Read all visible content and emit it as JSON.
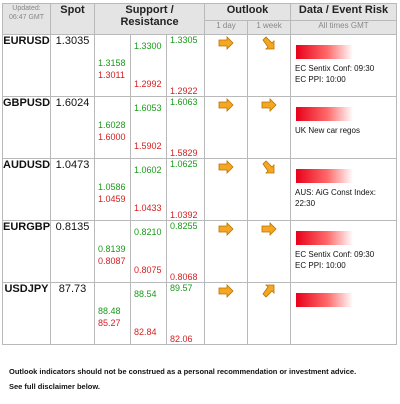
{
  "header": {
    "updated_label": "Updated:",
    "updated_time": "06:47 GMT",
    "spot": "Spot",
    "support_resistance": "Support / Resistance",
    "outlook": "Outlook",
    "day1": "1 day",
    "week1": "1 week",
    "data_event_risk": "Data / Event Risk",
    "times_note": "All times GMT"
  },
  "rows": [
    {
      "pair": "EURUSD",
      "spot": "1.3035",
      "r1": "1.3158",
      "s1": "1.3011",
      "r2": "1.3300",
      "s2": "1.2992",
      "r3": "1.3305",
      "s3": "1.2922",
      "day": "right",
      "week": "down-right",
      "events": [
        "EC Sentix Conf: 09:30",
        "EC PPI: 10:00"
      ]
    },
    {
      "pair": "GBPUSD",
      "spot": "1.6024",
      "r1": "1.6028",
      "s1": "1.6000",
      "r2": "1.6053",
      "s2": "1.5902",
      "r3": "1.6063",
      "s3": "1.5829",
      "day": "right",
      "week": "right",
      "events": [
        "UK New car regos"
      ]
    },
    {
      "pair": "AUDUSD",
      "spot": "1.0473",
      "r1": "1.0586",
      "s1": "1.0459",
      "r2": "1.0602",
      "s2": "1.0433",
      "r3": "1.0625",
      "s3": "1.0392",
      "day": "right",
      "week": "down-right",
      "events": [
        "AUS: AiG Const Index:",
        "22:30"
      ]
    },
    {
      "pair": "EURGBP",
      "spot": "0.8135",
      "r1": "0.8139",
      "s1": "0.8087",
      "r2": "0.8210",
      "s2": "0.8075",
      "r3": "0.8255",
      "s3": "0.8068",
      "day": "right",
      "week": "right",
      "events": [
        "EC Sentix Conf: 09:30",
        "EC PPI: 10:00"
      ]
    },
    {
      "pair": "USDJPY",
      "spot": "87.73",
      "r1": "88.48",
      "s1": "85.27",
      "r2": "88.54",
      "s2": "82.84",
      "r3": "89.57",
      "s3": "82.06",
      "day": "right",
      "week": "up-right",
      "events": []
    }
  ],
  "footer": {
    "line1": "Outlook indicators should not be construed as a personal recommendation or investment advice.",
    "line2": "See full disclaimer below."
  },
  "colors": {
    "resistance": "#1a9a1a",
    "support": "#d42020",
    "arrow": "#f5a623",
    "risk_bar": "#e8001a"
  },
  "icons": {
    "right": "arrow-right-icon",
    "down-right": "arrow-down-right-icon",
    "up-right": "arrow-up-right-icon"
  }
}
